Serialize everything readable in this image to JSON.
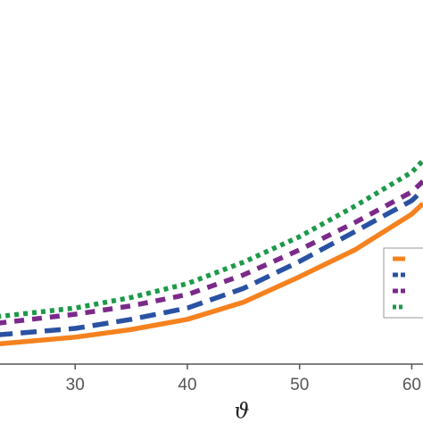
{
  "chart_data": {
    "type": "line",
    "xlabel": "ϑ",
    "x": [
      23,
      30,
      35,
      40,
      45,
      50,
      55,
      60,
      61
    ],
    "xlim": [
      23.3,
      61
    ],
    "xticks": [
      30,
      40,
      50,
      60
    ],
    "ylim": [
      0,
      100
    ],
    "series": [
      {
        "color": "#f5821f",
        "style": "solid",
        "values": [
          5.5,
          7.4,
          9.5,
          12.3,
          17,
          24,
          31.5,
          41.2,
          44.1
        ]
      },
      {
        "color": "#2a52a3",
        "style": "dashed",
        "values": [
          8,
          9.8,
          12.3,
          15.4,
          20.8,
          28.2,
          36.5,
          44.9,
          47.8
        ]
      },
      {
        "color": "#7b2a8a",
        "style": "dashed-short",
        "values": [
          11.2,
          13.7,
          16,
          19.1,
          24.5,
          31.4,
          39,
          47.3,
          50.2
        ]
      },
      {
        "color": "#1c9a48",
        "style": "dotted",
        "values": [
          13,
          15.4,
          18.3,
          22.1,
          28,
          35,
          43.5,
          52.7,
          55.9
        ]
      }
    ],
    "legend": "right"
  }
}
